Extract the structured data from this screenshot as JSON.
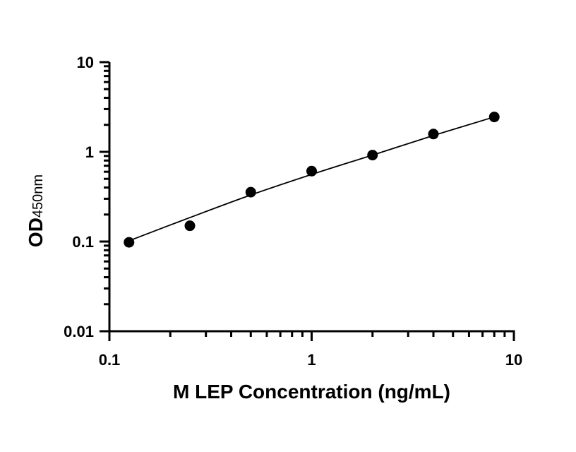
{
  "chart_data": {
    "type": "scatter",
    "xlabel": "M LEP Concentration (ng/mL)",
    "ylabel_main": "OD",
    "ylabel_sub": "450nm",
    "x_scale": "log",
    "y_scale": "log",
    "xlim": [
      0.1,
      10
    ],
    "ylim": [
      0.01,
      10
    ],
    "x_ticks": [
      0.1,
      1,
      10
    ],
    "x_tick_labels": [
      "0.1",
      "1",
      "10"
    ],
    "y_ticks": [
      0.01,
      0.1,
      1,
      10
    ],
    "y_tick_labels": [
      "0.01",
      "0.1",
      "1",
      "10"
    ],
    "grid": false,
    "series": [
      {
        "x": [
          0.125,
          0.25,
          0.5,
          1,
          2,
          4,
          8
        ],
        "y": [
          0.098,
          0.15,
          0.355,
          0.61,
          0.92,
          1.58,
          2.45
        ]
      }
    ],
    "fit_curve": {
      "x": [
        0.125,
        0.25,
        0.5,
        1,
        2,
        4,
        8
      ],
      "y": [
        0.102,
        0.185,
        0.33,
        0.56,
        0.92,
        1.52,
        2.45
      ]
    }
  }
}
